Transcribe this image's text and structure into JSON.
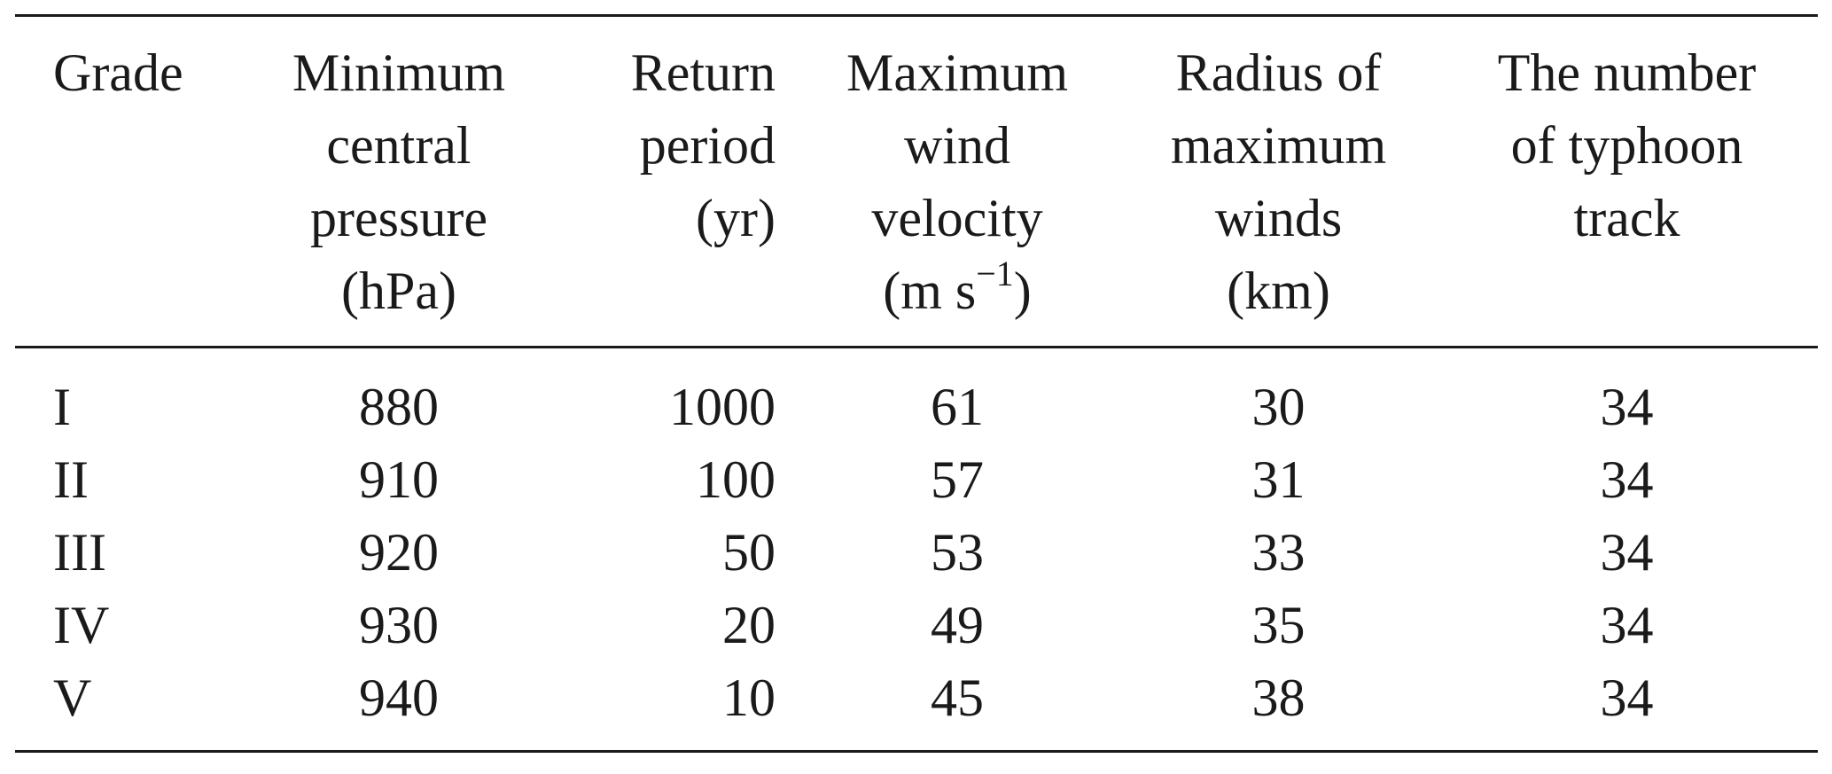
{
  "table": {
    "headers": [
      {
        "key": "grade",
        "lines": [
          "Grade"
        ]
      },
      {
        "key": "pressure",
        "lines": [
          "Minimum",
          "central",
          "pressure",
          "(hPa)"
        ]
      },
      {
        "key": "return",
        "lines": [
          "Return",
          "period",
          "(yr)"
        ]
      },
      {
        "key": "wind",
        "lines": [
          "Maximum",
          "wind",
          "velocity",
          "(m s",
          "−1",
          ")"
        ]
      },
      {
        "key": "radius",
        "lines": [
          "Radius of",
          "maximum",
          "winds",
          "(km)"
        ]
      },
      {
        "key": "track",
        "lines": [
          "The number",
          "of typhoon",
          "track"
        ]
      }
    ],
    "rows": [
      {
        "grade": "I",
        "pressure": "880",
        "return": "1000",
        "wind": "61",
        "radius": "30",
        "track": "34"
      },
      {
        "grade": "II",
        "pressure": "910",
        "return": "100",
        "wind": "57",
        "radius": "31",
        "track": "34"
      },
      {
        "grade": "III",
        "pressure": "920",
        "return": "50",
        "wind": "53",
        "radius": "33",
        "track": "34"
      },
      {
        "grade": "IV",
        "pressure": "930",
        "return": "20",
        "wind": "49",
        "radius": "35",
        "track": "34"
      },
      {
        "grade": "V",
        "pressure": "940",
        "return": "10",
        "wind": "45",
        "radius": "38",
        "track": "34"
      }
    ]
  }
}
